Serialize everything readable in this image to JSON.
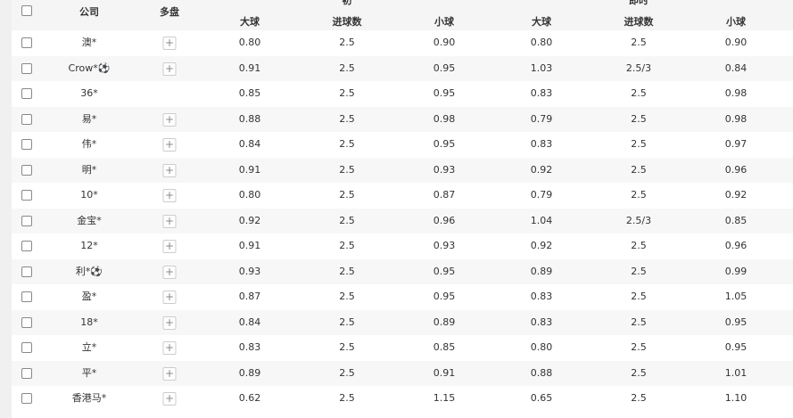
{
  "header": {
    "company": "公司",
    "multi": "多盘",
    "group_initial": "初",
    "group_live": "即时",
    "over": "大球",
    "line": "进球数",
    "under": "小球"
  },
  "rows": [
    {
      "company": "澳*",
      "multi": true,
      "o1": "0.80",
      "l1": "2.5",
      "u1": "0.90",
      "o2": "0.80",
      "l2": "2.5",
      "u2": "0.90"
    },
    {
      "company": "Crow*⚽",
      "multi": true,
      "o1": "0.91",
      "l1": "2.5",
      "u1": "0.95",
      "o2": "1.03",
      "l2": "2.5/3",
      "u2": "0.84"
    },
    {
      "company": "36*",
      "multi": false,
      "o1": "0.85",
      "l1": "2.5",
      "u1": "0.95",
      "o2": "0.83",
      "l2": "2.5",
      "u2": "0.98"
    },
    {
      "company": "易*",
      "multi": true,
      "o1": "0.88",
      "l1": "2.5",
      "u1": "0.98",
      "o2": "0.79",
      "l2": "2.5",
      "u2": "0.98"
    },
    {
      "company": "伟*",
      "multi": true,
      "o1": "0.84",
      "l1": "2.5",
      "u1": "0.95",
      "o2": "0.83",
      "l2": "2.5",
      "u2": "0.97"
    },
    {
      "company": "明*",
      "multi": true,
      "o1": "0.91",
      "l1": "2.5",
      "u1": "0.93",
      "o2": "0.92",
      "l2": "2.5",
      "u2": "0.96"
    },
    {
      "company": "10*",
      "multi": true,
      "o1": "0.80",
      "l1": "2.5",
      "u1": "0.87",
      "o2": "0.79",
      "l2": "2.5",
      "u2": "0.92"
    },
    {
      "company": "金宝*",
      "multi": true,
      "o1": "0.92",
      "l1": "2.5",
      "u1": "0.96",
      "o2": "1.04",
      "l2": "2.5/3",
      "u2": "0.85"
    },
    {
      "company": "12*",
      "multi": true,
      "o1": "0.91",
      "l1": "2.5",
      "u1": "0.93",
      "o2": "0.92",
      "l2": "2.5",
      "u2": "0.96"
    },
    {
      "company": "利*⚽",
      "multi": true,
      "o1": "0.93",
      "l1": "2.5",
      "u1": "0.95",
      "o2": "0.89",
      "l2": "2.5",
      "u2": "0.99"
    },
    {
      "company": "盈*",
      "multi": true,
      "o1": "0.87",
      "l1": "2.5",
      "u1": "0.95",
      "o2": "0.83",
      "l2": "2.5",
      "u2": "1.05"
    },
    {
      "company": "18*",
      "multi": true,
      "o1": "0.84",
      "l1": "2.5",
      "u1": "0.89",
      "o2": "0.83",
      "l2": "2.5",
      "u2": "0.95"
    },
    {
      "company": "立*",
      "multi": true,
      "o1": "0.83",
      "l1": "2.5",
      "u1": "0.85",
      "o2": "0.80",
      "l2": "2.5",
      "u2": "0.95"
    },
    {
      "company": "平*",
      "multi": true,
      "o1": "0.89",
      "l1": "2.5",
      "u1": "0.91",
      "o2": "0.88",
      "l2": "2.5",
      "u2": "1.01"
    },
    {
      "company": "香港马*",
      "multi": true,
      "o1": "0.62",
      "l1": "2.5",
      "u1": "1.15",
      "o2": "0.65",
      "l2": "2.5",
      "u2": "1.10"
    }
  ]
}
